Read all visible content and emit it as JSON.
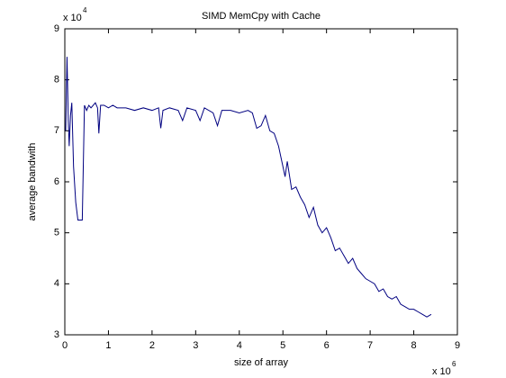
{
  "chart_data": {
    "type": "line",
    "title": "SIMD MemCpy with Cache",
    "x_label": "size of array",
    "y_label": "average bandwith",
    "x_multiplier": "x 10",
    "x_exponent": "6",
    "y_multiplier": "x 10",
    "y_exponent": "4",
    "xlim": [
      0,
      9
    ],
    "xticks": [
      0,
      1,
      2,
      3,
      4,
      5,
      6,
      7,
      8,
      9
    ],
    "ylim": [
      3,
      9
    ],
    "yticks": [
      3,
      4,
      5,
      6,
      7,
      8,
      9
    ],
    "grid": false,
    "series": [
      {
        "color": "#000080",
        "x": [
          0.02,
          0.05,
          0.08,
          0.1,
          0.13,
          0.16,
          0.2,
          0.25,
          0.3,
          0.35,
          0.4,
          0.45,
          0.5,
          0.55,
          0.6,
          0.7,
          0.75,
          0.78,
          0.82,
          0.9,
          1.0,
          1.1,
          1.2,
          1.4,
          1.6,
          1.8,
          2.0,
          2.15,
          2.2,
          2.25,
          2.4,
          2.6,
          2.7,
          2.8,
          3.0,
          3.1,
          3.2,
          3.4,
          3.5,
          3.6,
          3.8,
          4.0,
          4.2,
          4.3,
          4.4,
          4.5,
          4.6,
          4.7,
          4.8,
          4.9,
          5.0,
          5.05,
          5.1,
          5.2,
          5.3,
          5.4,
          5.5,
          5.6,
          5.7,
          5.8,
          5.9,
          6.0,
          6.1,
          6.2,
          6.3,
          6.4,
          6.5,
          6.6,
          6.7,
          6.8,
          6.9,
          7.0,
          7.1,
          7.2,
          7.3,
          7.4,
          7.5,
          7.6,
          7.7,
          7.8,
          7.9,
          8.0,
          8.1,
          8.2,
          8.3,
          8.4
        ],
        "values": [
          7.0,
          8.45,
          7.2,
          6.7,
          7.3,
          7.55,
          6.3,
          5.6,
          5.25,
          5.25,
          5.25,
          7.5,
          7.4,
          7.5,
          7.45,
          7.55,
          7.45,
          6.95,
          7.5,
          7.5,
          7.45,
          7.5,
          7.45,
          7.45,
          7.4,
          7.45,
          7.4,
          7.45,
          7.05,
          7.4,
          7.45,
          7.4,
          7.2,
          7.45,
          7.4,
          7.2,
          7.45,
          7.35,
          7.1,
          7.4,
          7.4,
          7.35,
          7.4,
          7.35,
          7.05,
          7.1,
          7.3,
          7.0,
          6.95,
          6.7,
          6.3,
          6.1,
          6.4,
          5.85,
          5.9,
          5.7,
          5.55,
          5.3,
          5.5,
          5.15,
          5.0,
          5.1,
          4.9,
          4.65,
          4.7,
          4.55,
          4.4,
          4.5,
          4.3,
          4.2,
          4.1,
          4.05,
          4.0,
          3.85,
          3.9,
          3.75,
          3.7,
          3.75,
          3.6,
          3.55,
          3.5,
          3.5,
          3.45,
          3.4,
          3.35,
          3.4
        ]
      }
    ]
  }
}
